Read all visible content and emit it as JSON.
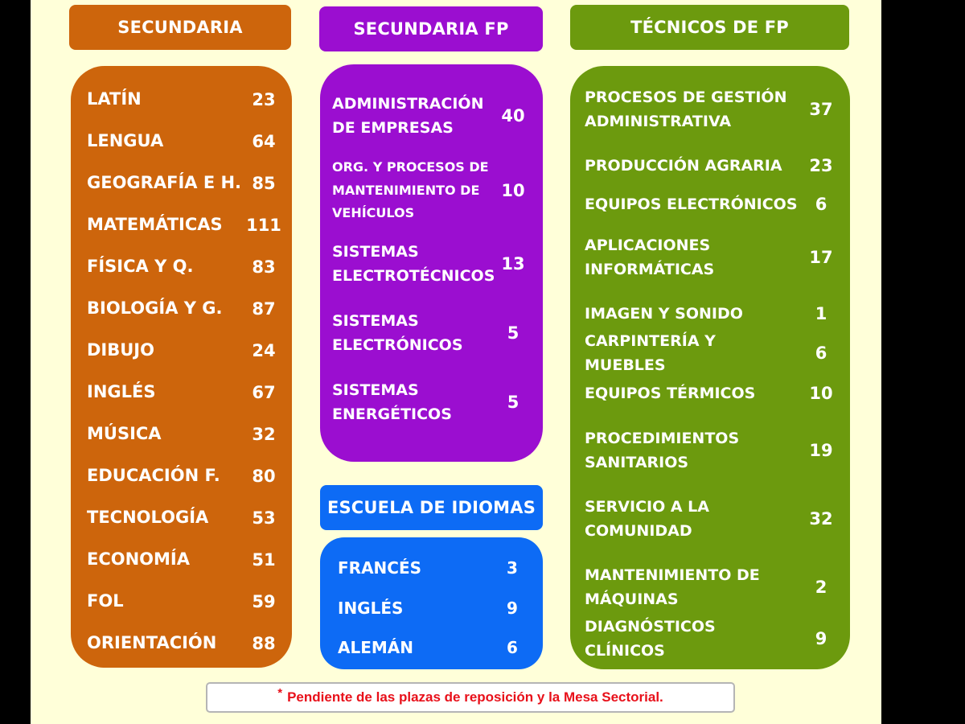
{
  "secundaria": {
    "header": "SECUNDARIA",
    "items": [
      {
        "label": "LATÍN",
        "value": "23"
      },
      {
        "label": "LENGUA",
        "value": "64"
      },
      {
        "label": "GEOGRAFÍA E H.",
        "value": "85"
      },
      {
        "label": "MATEMÁTICAS",
        "value": "111"
      },
      {
        "label": "FÍSICA Y Q.",
        "value": "83"
      },
      {
        "label": "BIOLOGÍA Y G.",
        "value": "87"
      },
      {
        "label": "DIBUJO",
        "value": "24"
      },
      {
        "label": "INGLÉS",
        "value": "67"
      },
      {
        "label": "MÚSICA",
        "value": "32"
      },
      {
        "label": "EDUCACIÓN F.",
        "value": "80"
      },
      {
        "label": "TECNOLOGÍA",
        "value": "53"
      },
      {
        "label": "ECONOMÍA",
        "value": "51"
      },
      {
        "label": "FOL",
        "value": "59"
      },
      {
        "label": "ORIENTACIÓN",
        "value": "88"
      }
    ]
  },
  "secundaria_fp": {
    "header": "SECUNDARIA FP",
    "items": [
      {
        "label": "ADMINISTRACIÓN DE EMPRESAS",
        "value": "40"
      },
      {
        "label": "ORG. Y PROCESOS DE MANTENIMIENTO DE VEHÍCULOS",
        "value": "10"
      },
      {
        "label": "SISTEMAS ELECTROTÉCNICOS",
        "value": "13"
      },
      {
        "label": "SISTEMAS ELECTRÓNICOS",
        "value": "5"
      },
      {
        "label": "SISTEMAS ENERGÉTICOS",
        "value": "5"
      }
    ]
  },
  "escuela_idiomas": {
    "header": "ESCUELA DE IDIOMAS",
    "items": [
      {
        "label": "FRANCÉS",
        "value": "3"
      },
      {
        "label": "INGLÉS",
        "value": "9"
      },
      {
        "label": "ALEMÁN",
        "value": "6"
      }
    ]
  },
  "tecnicos_fp": {
    "header": "TÉCNICOS DE FP",
    "items": [
      {
        "label": "PROCESOS DE GESTIÓN ADMINISTRATIVA",
        "value": "37"
      },
      {
        "label": "PRODUCCIÓN AGRARIA",
        "value": "23"
      },
      {
        "label": "EQUIPOS ELECTRÓNICOS",
        "value": "6"
      },
      {
        "label": "APLICACIONES INFORMÁTICAS",
        "value": "17"
      },
      {
        "label": "IMAGEN Y SONIDO",
        "value": "1"
      },
      {
        "label": "CARPINTERÍA Y MUEBLES",
        "value": "6"
      },
      {
        "label": "EQUIPOS TÉRMICOS",
        "value": "10"
      },
      {
        "label": "PROCEDIMIENTOS SANITARIOS",
        "value": "19"
      },
      {
        "label": "SERVICIO A LA COMUNIDAD",
        "value": "32"
      },
      {
        "label": "MANTENIMIENTO DE MÁQUINAS",
        "value": "2"
      },
      {
        "label": "DIAGNÓSTICOS CLÍNICOS",
        "value": "9"
      }
    ]
  },
  "note": {
    "marker": "*",
    "text": "Pendiente de las plazas de reposición y la Mesa Sectorial."
  },
  "colors": {
    "secundaria": "#cd650c",
    "secundaria_fp": "#9b0ed0",
    "tecnicos_fp": "#6c9a0e",
    "escuela_idiomas": "#0d6bf5",
    "note_text": "#e8101a",
    "background": "#ffffd9"
  }
}
